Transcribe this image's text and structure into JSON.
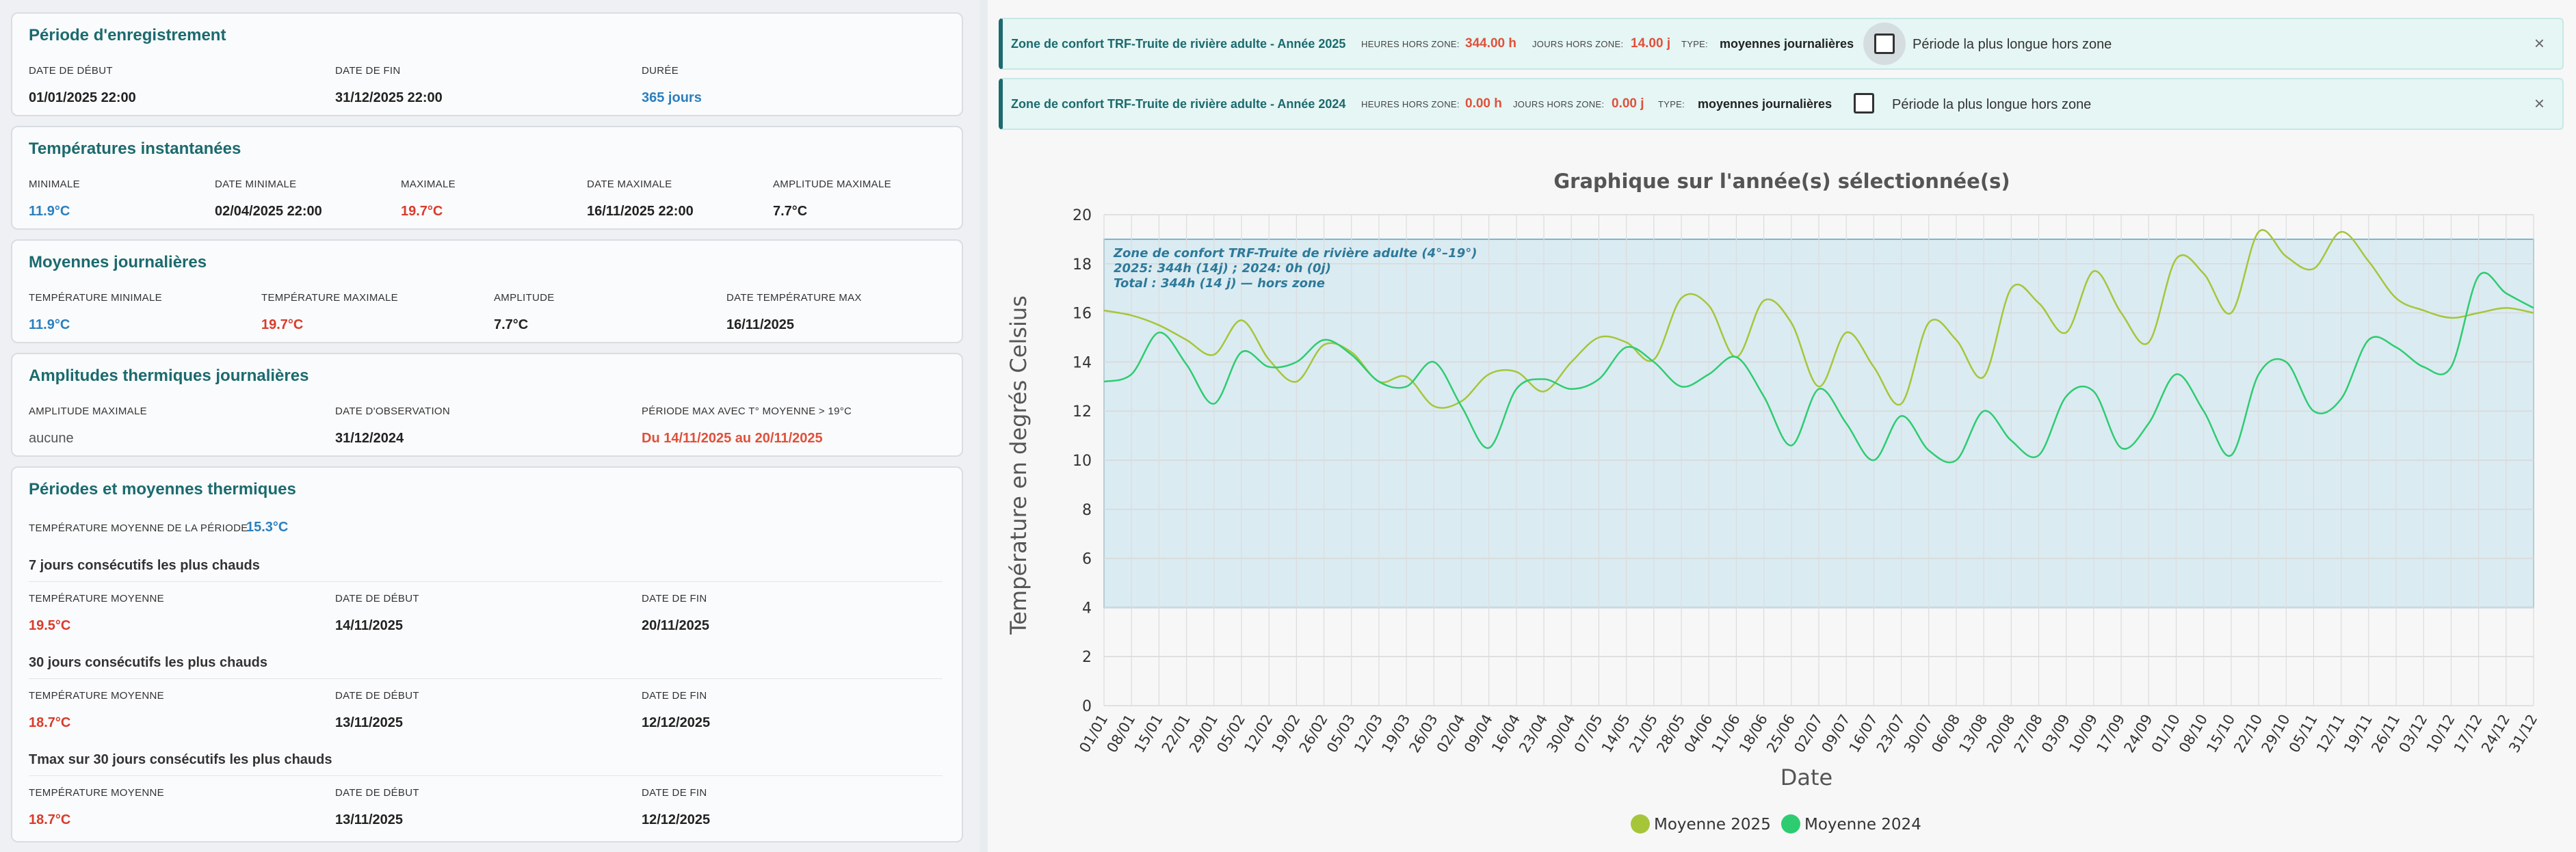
{
  "left": {
    "periode": {
      "title": "Période d'enregistrement",
      "start_label": "DATE DE DÉBUT",
      "start_value": "01/01/2025 22:00",
      "end_label": "DATE DE FIN",
      "end_value": "31/12/2025 22:00",
      "duree_label": "DURÉE",
      "duree_value": "365 jours"
    },
    "instant": {
      "title": "Températures instantanées",
      "min_label": "MINIMALE",
      "min_value": "11.9°C",
      "date_min_label": "DATE MINIMALE",
      "date_min_value": "02/04/2025 22:00",
      "max_label": "MAXIMALE",
      "max_value": "19.7°C",
      "date_max_label": "DATE MAXIMALE",
      "date_max_value": "16/11/2025 22:00",
      "ampl_label": "AMPLITUDE MAXIMALE",
      "ampl_value": "7.7°C"
    },
    "moyennes": {
      "title": "Moyennes journalières",
      "tmin_label": "TEMPÉRATURE MINIMALE",
      "tmin_value": "11.9°C",
      "tmax_label": "TEMPÉRATURE MAXIMALE",
      "tmax_value": "19.7°C",
      "ampl_label": "AMPLITUDE",
      "ampl_value": "7.7°C",
      "date_label": "DATE TEMPÉRATURE MAX",
      "date_value": "16/11/2025"
    },
    "amplitudes": {
      "title": "Amplitudes thermiques journalières",
      "ampl_label": "AMPLITUDE MAXIMALE",
      "ampl_value": "aucune",
      "obs_label": "DATE D'OBSERVATION",
      "obs_value": "31/12/2024",
      "periode_label": "PÉRIODE MAX AVEC T° MOYENNE > 19°C",
      "periode_value": "Du 14/11/2025 au 20/11/2025"
    },
    "periodes": {
      "title": "Périodes et moyennes thermiques",
      "tmoy_label": "TEMPÉRATURE MOYENNE DE LA PÉRIODE",
      "tmoy_value": "15.3°C",
      "blocks": [
        {
          "heading": "7 jours consécutifs les plus chauds",
          "t_label": "TEMPÉRATURE MOYENNE",
          "t_value": "19.5°C",
          "d1_label": "DATE DE DÉBUT",
          "d1_value": "14/11/2025",
          "d2_label": "DATE DE FIN",
          "d2_value": "20/11/2025"
        },
        {
          "heading": "30 jours consécutifs les plus chauds",
          "t_label": "TEMPÉRATURE MOYENNE",
          "t_value": "18.7°C",
          "d1_label": "DATE DE DÉBUT",
          "d1_value": "13/11/2025",
          "d2_label": "DATE DE FIN",
          "d2_value": "12/12/2025"
        },
        {
          "heading": "Tmax sur 30 jours consécutifs les plus chauds",
          "t_label": "TEMPÉRATURE MOYENNE",
          "t_value": "18.7°C",
          "d1_label": "DATE DE DÉBUT",
          "d1_value": "13/11/2025",
          "d2_label": "DATE DE FIN",
          "d2_value": "12/12/2025"
        }
      ]
    }
  },
  "zones": [
    {
      "title": "Zone de confort TRF-Truite de rivière adulte - Année 2025",
      "heures_label": "HEURES HORS ZONE:",
      "heures_value": "344.00 h",
      "jours_label": "JOURS HORS ZONE:",
      "jours_value": "14.00 j",
      "type_label": "TYPE:",
      "type_value": "moyennes journalières",
      "checkbox_label": "Période la plus longue hors zone",
      "close": "×"
    },
    {
      "title": "Zone de confort TRF-Truite de rivière adulte - Année 2024",
      "heures_label": "HEURES HORS ZONE:",
      "heures_value": "0.00 h",
      "jours_label": "JOURS HORS ZONE:",
      "jours_value": "0.00 j",
      "type_label": "TYPE:",
      "type_value": "moyennes journalières",
      "checkbox_label": "Période la plus longue hors zone",
      "close": "×"
    }
  ],
  "chart_data": {
    "type": "line",
    "title": "Graphique sur l'année(s) sélectionnée(s)",
    "xlabel": "Date",
    "ylabel": "Température en degrés Celsius",
    "ylim": [
      0,
      20
    ],
    "yticks": [
      0,
      2,
      4,
      6,
      8,
      10,
      12,
      14,
      16,
      18,
      20
    ],
    "grid": true,
    "legend_position": "bottom",
    "zone_band": {
      "from": 4,
      "to": 19,
      "color": "#b9dcea"
    },
    "annotation": [
      "Zone de confort TRF-Truite de rivière adulte (4°–19°)",
      "2025: 344h (14j) ; 2024: 0h (0j)",
      "Total : 344h (14 j) — hors zone"
    ],
    "x": [
      "01/01",
      "08/01",
      "15/01",
      "22/01",
      "29/01",
      "05/02",
      "12/02",
      "19/02",
      "26/02",
      "05/03",
      "12/03",
      "19/03",
      "26/03",
      "02/04",
      "09/04",
      "16/04",
      "23/04",
      "30/04",
      "07/05",
      "14/05",
      "21/05",
      "28/05",
      "04/06",
      "11/06",
      "18/06",
      "25/06",
      "02/07",
      "09/07",
      "16/07",
      "23/07",
      "30/07",
      "06/08",
      "13/08",
      "20/08",
      "27/08",
      "03/09",
      "10/09",
      "17/09",
      "24/09",
      "01/10",
      "08/10",
      "15/10",
      "22/10",
      "29/10",
      "05/11",
      "12/11",
      "19/11",
      "26/11",
      "03/12",
      "10/12",
      "17/12",
      "24/12",
      "31/12"
    ],
    "series": [
      {
        "name": "Moyenne 2025",
        "color": "#a5c639",
        "values": [
          16.1,
          15.9,
          15.5,
          14.9,
          14.3,
          15.7,
          14.1,
          13.2,
          14.7,
          14.4,
          13.2,
          13.4,
          12.2,
          12.4,
          13.5,
          13.6,
          12.8,
          14.0,
          15.0,
          14.8,
          14.1,
          16.6,
          16.3,
          14.2,
          16.5,
          15.6,
          13.0,
          15.2,
          13.8,
          12.3,
          15.6,
          14.9,
          13.4,
          17.0,
          16.4,
          15.2,
          17.7,
          16.0,
          14.8,
          18.2,
          17.6,
          16.0,
          19.3,
          18.3,
          17.8,
          19.3,
          18.1,
          16.6,
          16.1,
          15.8,
          16.0,
          16.2,
          16.0
        ]
      },
      {
        "name": "Moyenne 2024",
        "color": "#2ecc71",
        "values": [
          13.2,
          13.5,
          15.2,
          13.9,
          12.3,
          14.4,
          13.8,
          14.0,
          14.9,
          14.3,
          13.2,
          13.0,
          14.0,
          12.2,
          10.5,
          12.9,
          13.3,
          12.9,
          13.3,
          14.6,
          14.0,
          13.0,
          13.5,
          14.2,
          12.6,
          10.6,
          12.9,
          11.5,
          10.0,
          11.8,
          10.4,
          10.0,
          12.0,
          10.8,
          10.2,
          12.6,
          12.8,
          10.5,
          11.5,
          13.5,
          12.0,
          10.2,
          13.5,
          14.0,
          12.0,
          12.5,
          14.9,
          14.6,
          13.8,
          13.8,
          17.5,
          16.8,
          16.2
        ]
      }
    ]
  }
}
